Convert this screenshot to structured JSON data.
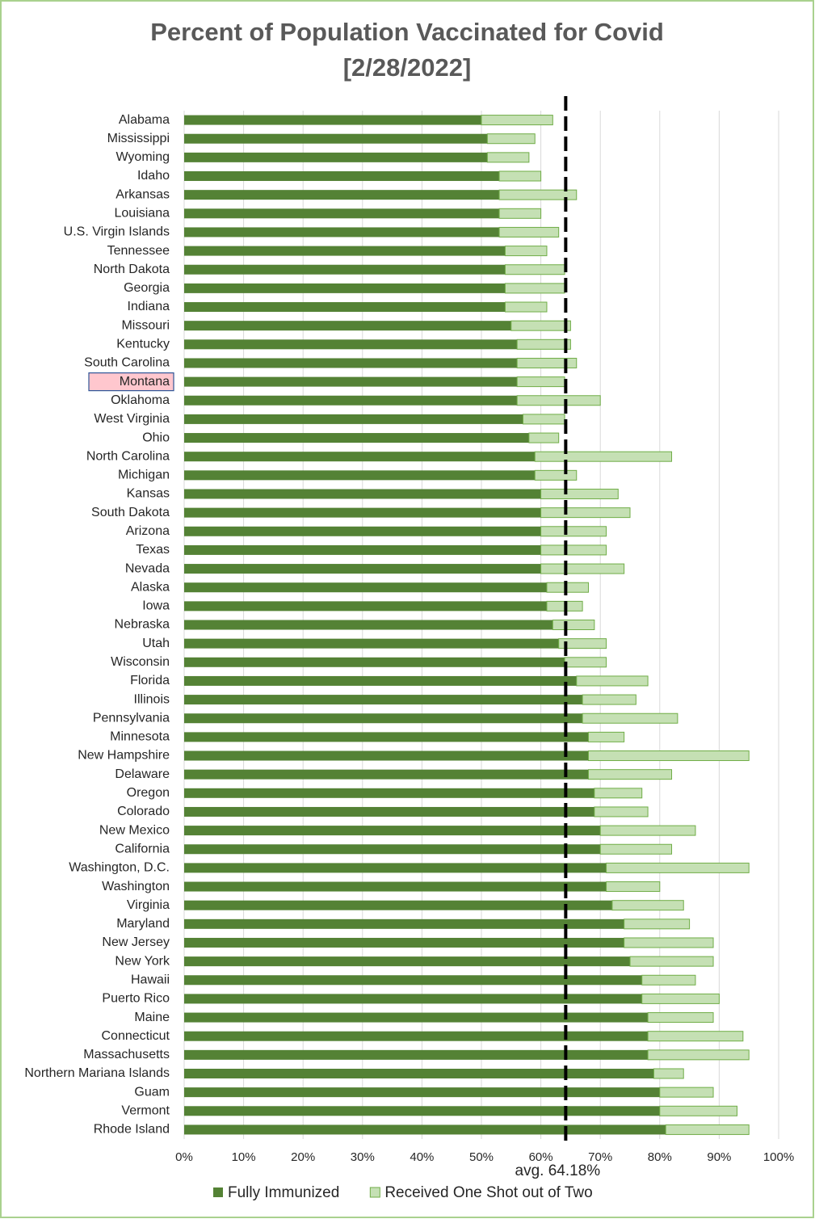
{
  "chart_data": {
    "type": "stacked-bar-horizontal",
    "title": "Percent of Population Vaccinated for Covid",
    "subtitle": "[2/28/2022]",
    "categories": [
      "Alabama",
      "Mississippi",
      "Wyoming",
      "Idaho",
      "Arkansas",
      "Louisiana",
      "U.S. Virgin Islands",
      "Tennessee",
      "North Dakota",
      "Georgia",
      "Indiana",
      "Missouri",
      "Kentucky",
      "South Carolina",
      "Montana",
      "Oklahoma",
      "West Virginia",
      "Ohio",
      "North Carolina",
      "Michigan",
      "Kansas",
      "South Dakota",
      "Arizona",
      "Texas",
      "Nevada",
      "Alaska",
      "Iowa",
      "Nebraska",
      "Utah",
      "Wisconsin",
      "Florida",
      "Illinois",
      "Pennsylvania",
      "Minnesota",
      "New Hampshire",
      "Delaware",
      "Oregon",
      "Colorado",
      "New Mexico",
      "California",
      "Washington, D.C.",
      "Washington",
      "Virginia",
      "Maryland",
      "New Jersey",
      "New York",
      "Hawaii",
      "Puerto Rico",
      "Maine",
      "Connecticut",
      "Massachusetts",
      "Northern Mariana Islands",
      "Guam",
      "Vermont",
      "Rhode Island"
    ],
    "series": [
      {
        "name": "Fully Immunized",
        "color": "#548235",
        "values": [
          50,
          51,
          51,
          53,
          53,
          53,
          53,
          54,
          54,
          54,
          54,
          55,
          56,
          56,
          56,
          56,
          57,
          58,
          59,
          59,
          60,
          60,
          60,
          60,
          60,
          61,
          61,
          62,
          63,
          64,
          66,
          67,
          67,
          68,
          68,
          68,
          69,
          69,
          70,
          70,
          71,
          71,
          72,
          74,
          74,
          75,
          77,
          77,
          78,
          78,
          78,
          79,
          80,
          80,
          81
        ]
      },
      {
        "name": "Received One Shot out of Two",
        "color": "#c5e0b4",
        "values": [
          12,
          8,
          7,
          7,
          13,
          7,
          10,
          7,
          10,
          10,
          7,
          10,
          9,
          10,
          8,
          14,
          7,
          5,
          23,
          7,
          13,
          15,
          11,
          11,
          14,
          7,
          6,
          7,
          8,
          7,
          12,
          9,
          16,
          6,
          27,
          14,
          8,
          9,
          16,
          12,
          24,
          9,
          12,
          11,
          15,
          14,
          9,
          13,
          11,
          16,
          17,
          5,
          9,
          13,
          14
        ]
      }
    ],
    "average": {
      "value": 64.18,
      "label": "avg. 64.18%"
    },
    "highlight": "Montana",
    "xlim": [
      0,
      100
    ],
    "xticks": [
      {
        "value": 0,
        "label": "0%"
      },
      {
        "value": 10,
        "label": "10%"
      },
      {
        "value": 20,
        "label": "20%"
      },
      {
        "value": 30,
        "label": "30%"
      },
      {
        "value": 40,
        "label": "40%"
      },
      {
        "value": 50,
        "label": "50%"
      },
      {
        "value": 60,
        "label": "60%"
      },
      {
        "value": 70,
        "label": "70%"
      },
      {
        "value": 80,
        "label": "80%"
      },
      {
        "value": 90,
        "label": "90%"
      },
      {
        "value": 100,
        "label": "100%"
      }
    ],
    "grid": true
  }
}
